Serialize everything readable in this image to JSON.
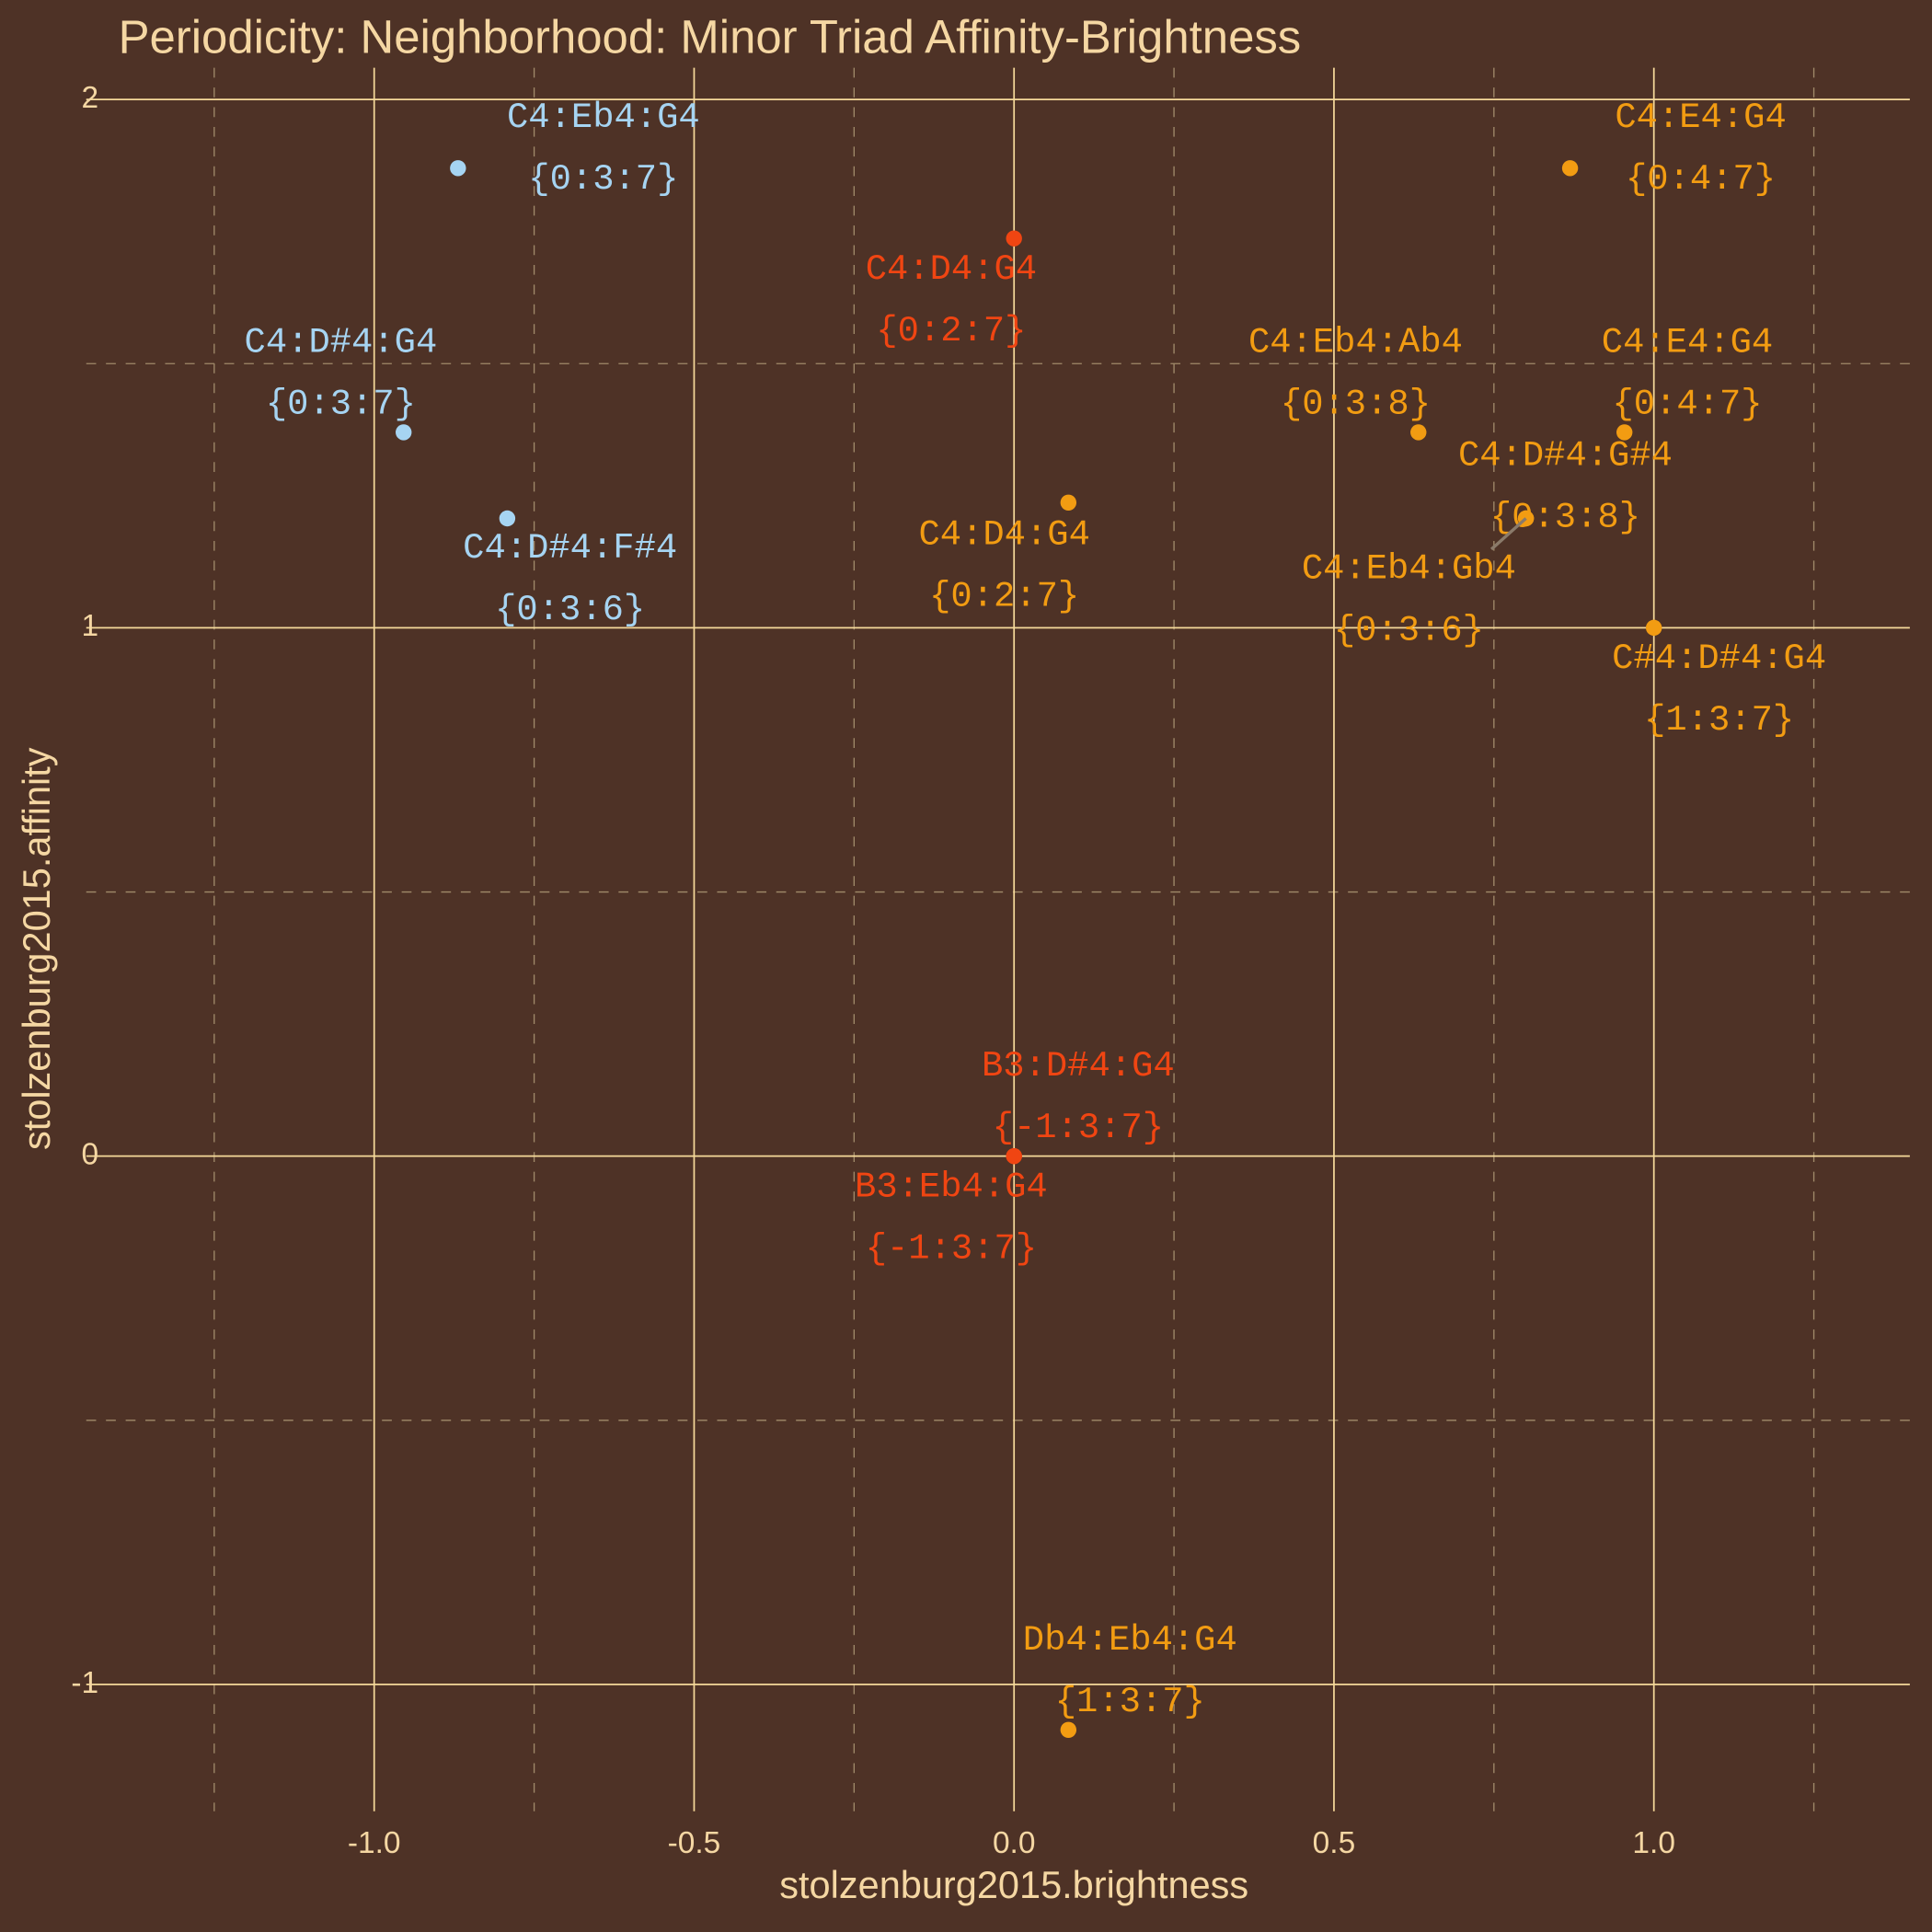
{
  "chart_data": {
    "type": "scatter",
    "title": "Periodicity: Neighborhood: Minor Triad Affinity-Brightness",
    "x_label": "stolzenburg2015.brightness",
    "y_label": "stolzenburg2015.affinity",
    "xlim": [
      -1.45,
      1.4
    ],
    "ylim": [
      -1.24,
      2.06
    ],
    "xticks": [
      {
        "value": -1,
        "label": "-1.0"
      },
      -0.5,
      {
        "value": 0,
        "label": "0.0"
      },
      0.5,
      {
        "value": 1,
        "label": "1.0"
      }
    ],
    "yticks": [
      -1,
      0,
      1,
      2
    ],
    "xminorticks": [
      -1.25,
      -0.75,
      -0.25,
      0.25,
      0.75,
      1.25
    ],
    "yminorticks": [
      -0.5,
      0.5,
      1.5
    ],
    "grid": true,
    "series": [
      {
        "color": "#a6d4f2",
        "x": [
          -0.869,
          -0.954,
          -0.792
        ],
        "values": [
          1.87,
          1.37,
          1.207
        ],
        "labels": [
          "C4:Eb4:G4",
          "C4:D#4:G4",
          "C4:D#4:F#4"
        ],
        "sublabels": [
          "{0:3:7}",
          "{0:3:7}",
          "{0:3:6}"
        ]
      },
      {
        "color": "#f04512",
        "x": [
          0,
          0,
          0
        ],
        "values": [
          1.737,
          0,
          0
        ],
        "labels": [
          "C4:D4:G4",
          "B3:D#4:G4",
          "B3:Eb4:G4"
        ],
        "sublabels": [
          "{0:2:7}",
          "{-1:3:7}",
          "{-1:3:7}"
        ]
      },
      {
        "color": "#f29c12",
        "x": [
          0.869,
          0.632,
          0.954,
          0.8,
          0.085,
          0.8,
          1.0,
          0.085
        ],
        "values": [
          1.87,
          1.37,
          1.37,
          1.207,
          1.237,
          1.207,
          1.0,
          -1.086
        ],
        "labels": [
          "C4:E4:G4",
          "C4:Eb4:Ab4",
          "C4:E4:G4",
          "C4:D#4:G#4",
          "C4:D4:G4",
          "C4:Eb4:Gb4",
          "C#4:D#4:G4",
          "Db4:Eb4:G4"
        ],
        "sublabels": [
          "{0:4:7}",
          "{0:3:8}",
          "{0:4:7}",
          "{0:3:8}",
          "{0:2:7}",
          "{0:3:6}",
          "{1:3:7}",
          "{1:3:7}"
        ]
      }
    ]
  }
}
